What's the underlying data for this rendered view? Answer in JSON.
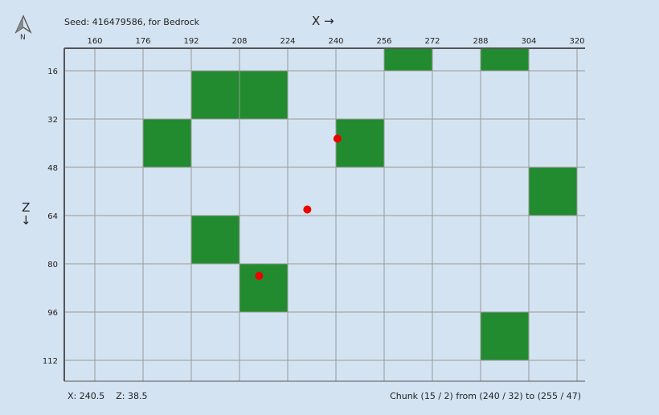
{
  "header": {
    "seed_text": "Seed: 416479586, for Bedrock",
    "x_axis_label": "X →",
    "z_axis_label": "Z",
    "z_arrow": "↓",
    "compass_label": "N"
  },
  "map": {
    "x_ticks": [
      160,
      176,
      192,
      208,
      224,
      240,
      256,
      272,
      288,
      304,
      320
    ],
    "z_ticks": [
      16,
      32,
      48,
      64,
      80,
      96,
      112
    ],
    "chunk_size": 16,
    "highlighted_chunks": [
      {
        "x": 256,
        "z": 0
      },
      {
        "x": 288,
        "z": 0
      },
      {
        "x": 192,
        "z": 16
      },
      {
        "x": 208,
        "z": 16
      },
      {
        "x": 176,
        "z": 32
      },
      {
        "x": 240,
        "z": 32
      },
      {
        "x": 304,
        "z": 48
      },
      {
        "x": 192,
        "z": 64
      },
      {
        "x": 208,
        "z": 80
      },
      {
        "x": 288,
        "z": 96
      }
    ],
    "points": [
      {
        "x": 240.5,
        "z": 38.5
      },
      {
        "x": 230.5,
        "z": 62
      },
      {
        "x": 214.5,
        "z": 84
      }
    ],
    "colors": {
      "chunk_fill": "#228b2f",
      "point": "#ee0000",
      "grid": "#999999",
      "border": "#555555"
    }
  },
  "status": {
    "x_coord": "X: 240.5",
    "z_coord": "Z: 38.5",
    "chunk_info": "Chunk (15 / 2) from (240 / 32) to (255 / 47)"
  }
}
